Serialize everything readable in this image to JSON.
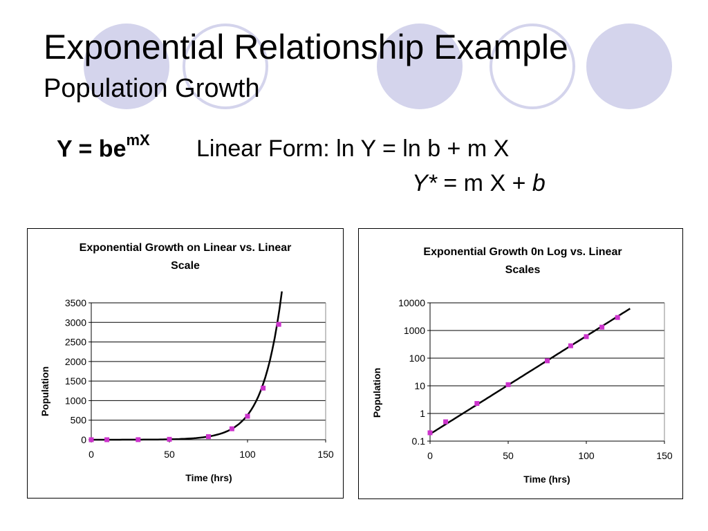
{
  "slide": {
    "title": "Exponential Relationship Example",
    "subtitle": "Population Growth",
    "equation": {
      "lhs": "Y = be",
      "exponent": "mX"
    },
    "linear_form": "Linear Form:  ln Y = ln b + m X",
    "transformed": {
      "y": "Y*",
      "mid": " =  m X + ",
      "b": "b"
    },
    "decoration_colors": {
      "filled": "#d4d4ec",
      "outline": "#d4d4ec"
    }
  },
  "chart_data": [
    {
      "type": "scatter",
      "title_lines": [
        "Exponential Growth on Linear vs. Linear",
        "Scale"
      ],
      "xlabel": "Time (hrs)",
      "ylabel": "Population",
      "xlim": [
        0,
        150
      ],
      "ylim": [
        0,
        3500
      ],
      "xticks": [
        0,
        50,
        100,
        150
      ],
      "yticks": [
        0,
        500,
        1000,
        1500,
        2000,
        2500,
        3000,
        3500
      ],
      "yscale": "linear",
      "grid": "horizontal",
      "marker_color": "#cc33cc",
      "points": {
        "x": [
          0,
          10,
          30,
          50,
          75,
          90,
          100,
          110,
          120
        ],
        "y": [
          0.2,
          0.5,
          2.3,
          11,
          80,
          280,
          600,
          1320,
          2950
        ]
      },
      "fit": {
        "type": "exponential",
        "b": 0.18,
        "m": 0.0816,
        "x_range": [
          0,
          122
        ]
      }
    },
    {
      "type": "scatter",
      "title_lines": [
        "Exponential Growth 0n Log vs. Linear",
        "Scales"
      ],
      "xlabel": "Time (hrs)",
      "ylabel": "Population",
      "xlim": [
        0,
        150
      ],
      "ylim": [
        0.1,
        10000
      ],
      "xticks": [
        0,
        50,
        100,
        150
      ],
      "yticks": [
        0.1,
        1,
        10,
        100,
        1000,
        10000
      ],
      "ytick_labels": [
        "0.1",
        "1",
        "10",
        "100",
        "1000",
        "10000"
      ],
      "yscale": "log",
      "grid": "horizontal",
      "marker_color": "#cc33cc",
      "points": {
        "x": [
          0,
          10,
          30,
          50,
          75,
          90,
          100,
          110,
          120
        ],
        "y": [
          0.2,
          0.5,
          2.3,
          11,
          80,
          280,
          600,
          1320,
          2950
        ]
      },
      "fit": {
        "type": "exponential",
        "b": 0.18,
        "m": 0.0816,
        "x_range": [
          0,
          128
        ]
      }
    }
  ]
}
